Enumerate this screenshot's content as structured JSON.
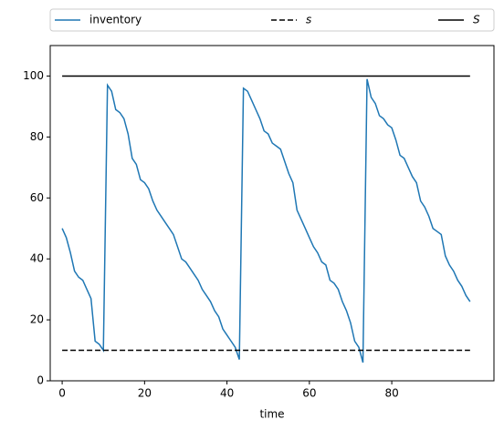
{
  "chart_data": {
    "type": "line",
    "x_label": "time",
    "series": [
      {
        "name": "inventory",
        "color": "#1f77b4",
        "style": "solid",
        "x": [
          0,
          1,
          2,
          3,
          4,
          5,
          6,
          7,
          8,
          9,
          10,
          11,
          12,
          13,
          14,
          15,
          16,
          17,
          18,
          19,
          20,
          21,
          22,
          23,
          24,
          25,
          26,
          27,
          28,
          29,
          30,
          31,
          32,
          33,
          34,
          35,
          36,
          37,
          38,
          39,
          40,
          41,
          42,
          43,
          44,
          45,
          46,
          47,
          48,
          49,
          50,
          51,
          52,
          53,
          54,
          55,
          56,
          57,
          58,
          59,
          60,
          61,
          62,
          63,
          64,
          65,
          66,
          67,
          68,
          69,
          70,
          71,
          72,
          73,
          74,
          75,
          76,
          77,
          78,
          79,
          80,
          81,
          82,
          83,
          84,
          85,
          86,
          87,
          88,
          89,
          90,
          91,
          92,
          93,
          94,
          95,
          96,
          97,
          98,
          99
        ],
        "values": [
          50,
          47,
          42,
          36,
          34,
          33,
          30,
          27,
          13,
          12,
          10,
          97,
          95,
          89,
          88,
          86,
          81,
          73,
          71,
          66,
          65,
          63,
          59,
          56,
          54,
          52,
          50,
          48,
          44,
          40,
          39,
          37,
          35,
          33,
          30,
          28,
          26,
          23,
          21,
          17,
          15,
          13,
          11,
          7,
          96,
          95,
          92,
          89,
          86,
          82,
          81,
          78,
          77,
          76,
          72,
          68,
          65,
          56,
          53,
          50,
          47,
          44,
          42,
          39,
          38,
          33,
          32,
          30,
          26,
          23,
          19,
          13,
          11,
          6,
          99,
          93,
          91,
          87,
          86,
          84,
          83,
          79,
          74,
          73,
          70,
          67,
          65,
          59,
          57,
          54,
          50,
          49,
          48,
          41,
          38,
          36,
          33,
          31,
          28,
          26
        ]
      },
      {
        "name": "s",
        "color": "#000000",
        "style": "dashed",
        "x": [
          0,
          99
        ],
        "values": [
          10,
          10
        ]
      },
      {
        "name": "S",
        "color": "#000000",
        "style": "solid",
        "x": [
          0,
          99
        ],
        "values": [
          100,
          100
        ]
      }
    ],
    "xlim": [
      -2.9,
      104.8
    ],
    "xticks": [
      0,
      20,
      40,
      60,
      80
    ],
    "ylim": [
      0,
      110
    ],
    "yticks": [
      0,
      20,
      40,
      60,
      80,
      100
    ],
    "grid": false,
    "legend": "top"
  }
}
